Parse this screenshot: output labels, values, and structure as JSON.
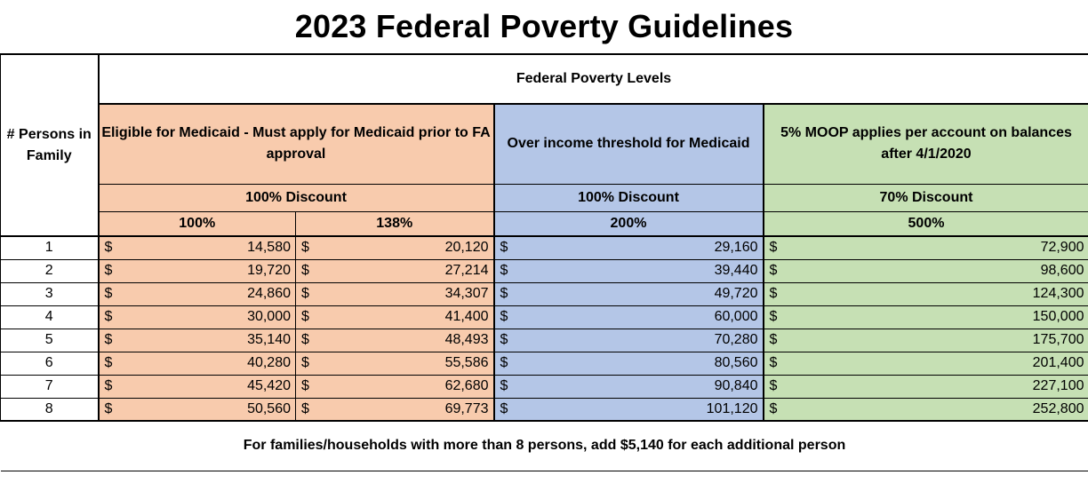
{
  "title": "2023 Federal Poverty Guidelines",
  "subtitle": "Federal Poverty Levels",
  "persons_header": "# Persons in Family",
  "groups": [
    {
      "description": "Eligible for Medicaid - Must apply for Medicaid prior to FA approval",
      "discount": "100% Discount"
    },
    {
      "description": "Over income threshold for Medicaid",
      "discount": "100% Discount"
    },
    {
      "description": "5% MOOP applies per account on balances after 4/1/2020",
      "discount": "70% Discount"
    }
  ],
  "levels": [
    "100%",
    "138%",
    "200%",
    "500%"
  ],
  "currency_symbol": "$",
  "rows": [
    {
      "persons": "1",
      "values": [
        "14,580",
        "20,120",
        "29,160",
        "72,900"
      ]
    },
    {
      "persons": "2",
      "values": [
        "19,720",
        "27,214",
        "39,440",
        "98,600"
      ]
    },
    {
      "persons": "3",
      "values": [
        "24,860",
        "34,307",
        "49,720",
        "124,300"
      ]
    },
    {
      "persons": "4",
      "values": [
        "30,000",
        "41,400",
        "60,000",
        "150,000"
      ]
    },
    {
      "persons": "5",
      "values": [
        "35,140",
        "48,493",
        "70,280",
        "175,700"
      ]
    },
    {
      "persons": "6",
      "values": [
        "40,280",
        "55,586",
        "80,560",
        "201,400"
      ]
    },
    {
      "persons": "7",
      "values": [
        "45,420",
        "62,680",
        "90,840",
        "227,100"
      ]
    },
    {
      "persons": "8",
      "values": [
        "50,560",
        "69,773",
        "101,120",
        "252,800"
      ]
    }
  ],
  "footer": "For families/households with more than 8 persons, add $5,140 for each additional person",
  "colors": {
    "orange": "#f8cbad",
    "blue": "#b4c6e7",
    "green": "#c6e0b4"
  }
}
